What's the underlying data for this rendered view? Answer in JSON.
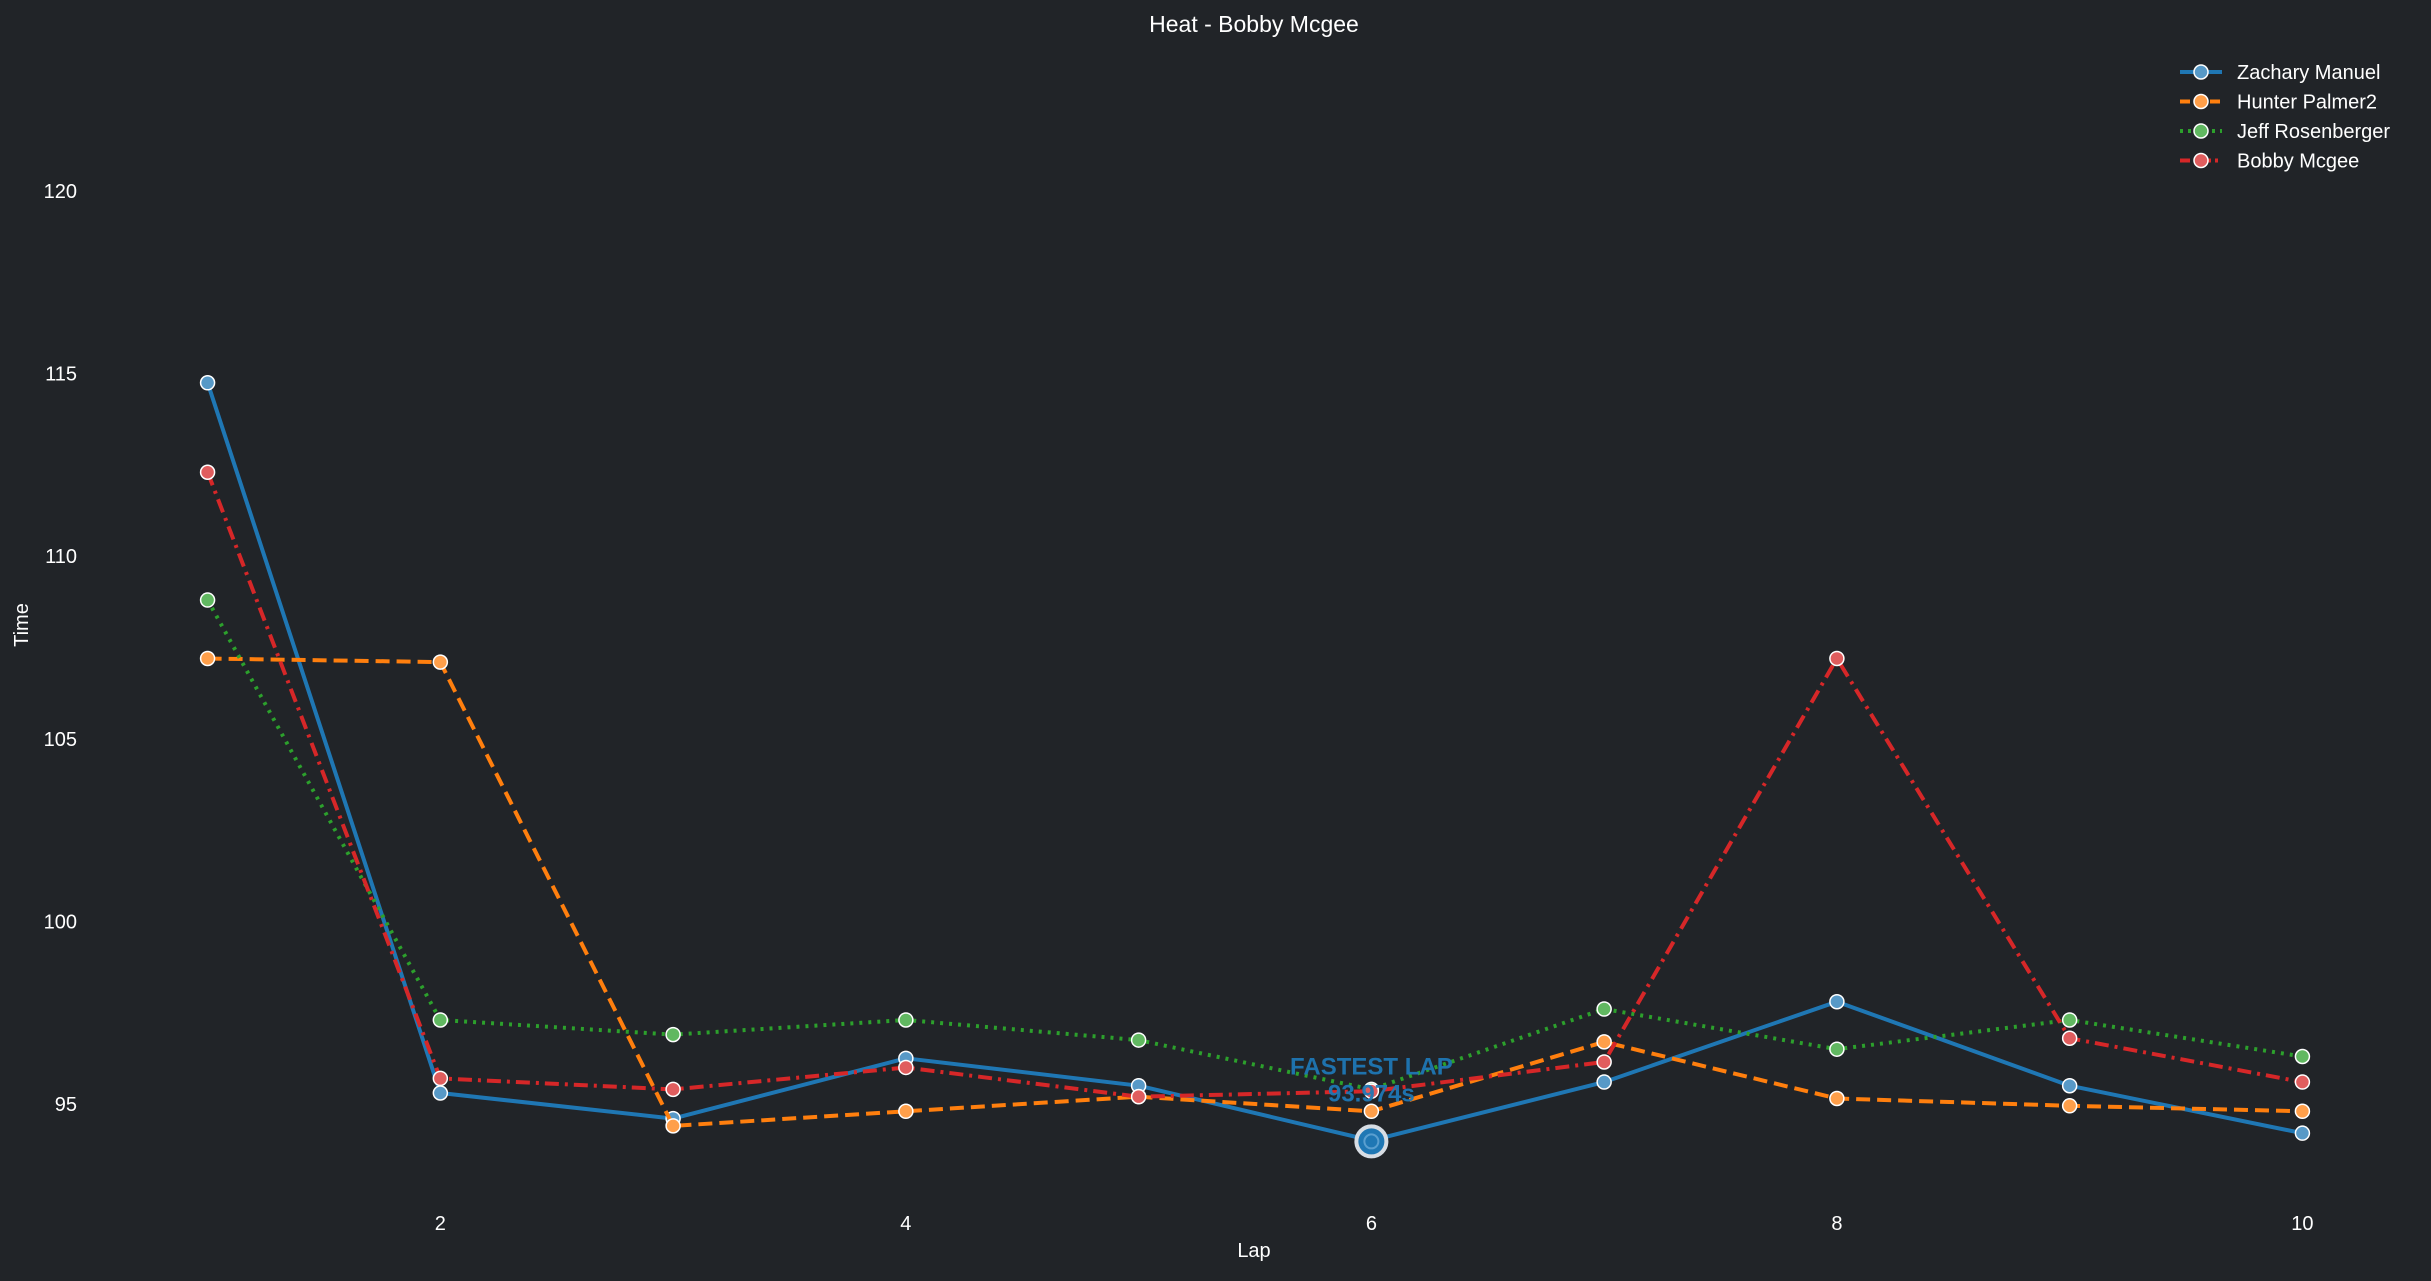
{
  "chart_data": {
    "type": "line",
    "title": "Heat - Bobby Mcgee",
    "xlabel": "Lap",
    "ylabel": "Time",
    "x": [
      1,
      2,
      3,
      4,
      5,
      6,
      7,
      8,
      9,
      10
    ],
    "x_ticks": [
      2,
      4,
      6,
      8,
      10
    ],
    "y_ticks": [
      95,
      100,
      105,
      110,
      115,
      120
    ],
    "xlim": [
      0.86,
      10.14
    ],
    "ylim": [
      93.0,
      124.0
    ],
    "grid": false,
    "legend_position": "top-right",
    "series": [
      {
        "name": "Zachary Manuel",
        "color": "#1f77b4",
        "dash": "solid",
        "values": [
          114.75,
          95.3,
          94.6,
          96.25,
          95.5,
          94.0,
          95.6,
          97.8,
          95.5,
          94.2
        ]
      },
      {
        "name": "Hunter Palmer2",
        "color": "#ff7f0e",
        "dash": "dashed",
        "values": [
          107.2,
          107.1,
          94.4,
          94.8,
          95.2,
          94.8,
          96.7,
          95.15,
          94.95,
          94.8
        ]
      },
      {
        "name": "Jeff Rosenberger",
        "color": "#2ca02c",
        "dash": "dotted",
        "values": [
          108.8,
          97.3,
          96.9,
          97.3,
          96.75,
          95.4,
          97.6,
          96.5,
          97.3,
          96.3
        ]
      },
      {
        "name": "Bobby Mcgee",
        "color": "#d62728",
        "dash": "dashdot",
        "values": [
          112.3,
          95.7,
          95.4,
          96.0,
          95.2,
          95.35,
          96.15,
          107.2,
          96.8,
          95.6
        ]
      }
    ],
    "annotation": {
      "label": "FASTEST LAP",
      "value_text": "93.974s",
      "x": 6,
      "y": 93.974,
      "color": "#1f77b4"
    }
  }
}
